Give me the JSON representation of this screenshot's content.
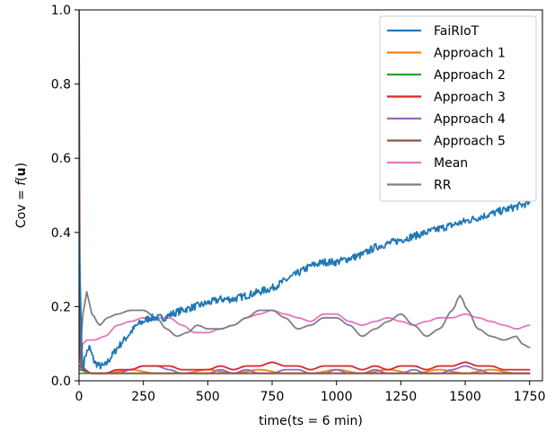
{
  "chart_data": {
    "type": "line",
    "xlabel": "time(ts = 6 min)",
    "ylabel_prefix": "Cov = ",
    "ylabel_func": "f",
    "ylabel_arg": "u",
    "xlim": [
      0,
      1800
    ],
    "ylim": [
      0.0,
      1.0
    ],
    "x_ticks": [
      0,
      250,
      500,
      750,
      1000,
      1250,
      1500,
      1750
    ],
    "x_tick_labels": [
      "0",
      "250",
      "500",
      "750",
      "1000",
      "1250",
      "1500",
      "1750"
    ],
    "y_ticks": [
      0.0,
      0.2,
      0.4,
      0.6,
      0.8,
      1.0
    ],
    "y_tick_labels": [
      "0.0",
      "0.2",
      "0.4",
      "0.6",
      "0.8",
      "1.0"
    ],
    "grid": false,
    "legend_position": "top-right",
    "series": [
      {
        "name": "FaiRIoT",
        "color": "#1f77b4",
        "noise": 0.01,
        "points": [
          [
            0,
            0.38
          ],
          [
            3,
            0.3
          ],
          [
            6,
            0.22
          ],
          [
            10,
            0.1
          ],
          [
            15,
            0.03
          ],
          [
            25,
            0.07
          ],
          [
            40,
            0.09
          ],
          [
            60,
            0.05
          ],
          [
            80,
            0.04
          ],
          [
            100,
            0.04
          ],
          [
            130,
            0.07
          ],
          [
            150,
            0.09
          ],
          [
            175,
            0.11
          ],
          [
            200,
            0.13
          ],
          [
            225,
            0.15
          ],
          [
            250,
            0.16
          ],
          [
            275,
            0.17
          ],
          [
            300,
            0.17
          ],
          [
            330,
            0.17
          ],
          [
            360,
            0.18
          ],
          [
            400,
            0.19
          ],
          [
            450,
            0.2
          ],
          [
            500,
            0.21
          ],
          [
            550,
            0.22
          ],
          [
            600,
            0.22
          ],
          [
            650,
            0.23
          ],
          [
            700,
            0.24
          ],
          [
            750,
            0.25
          ],
          [
            800,
            0.27
          ],
          [
            850,
            0.29
          ],
          [
            900,
            0.31
          ],
          [
            950,
            0.32
          ],
          [
            1000,
            0.32
          ],
          [
            1050,
            0.33
          ],
          [
            1100,
            0.34
          ],
          [
            1150,
            0.36
          ],
          [
            1200,
            0.37
          ],
          [
            1250,
            0.38
          ],
          [
            1300,
            0.39
          ],
          [
            1350,
            0.4
          ],
          [
            1400,
            0.41
          ],
          [
            1450,
            0.42
          ],
          [
            1500,
            0.43
          ],
          [
            1550,
            0.44
          ],
          [
            1600,
            0.45
          ],
          [
            1650,
            0.46
          ],
          [
            1700,
            0.47
          ],
          [
            1750,
            0.48
          ]
        ]
      },
      {
        "name": "Approach 1",
        "color": "#ff7f0e",
        "noise": 0,
        "points": [
          [
            0,
            0.03
          ],
          [
            50,
            0.02
          ],
          [
            100,
            0.02
          ],
          [
            200,
            0.03
          ],
          [
            300,
            0.02
          ],
          [
            400,
            0.02
          ],
          [
            500,
            0.03
          ],
          [
            600,
            0.02
          ],
          [
            700,
            0.03
          ],
          [
            800,
            0.02
          ],
          [
            900,
            0.02
          ],
          [
            1000,
            0.03
          ],
          [
            1100,
            0.02
          ],
          [
            1200,
            0.03
          ],
          [
            1300,
            0.02
          ],
          [
            1400,
            0.03
          ],
          [
            1500,
            0.02
          ],
          [
            1600,
            0.03
          ],
          [
            1700,
            0.02
          ],
          [
            1750,
            0.02
          ]
        ]
      },
      {
        "name": "Approach 2",
        "color": "#2ca02c",
        "noise": 0,
        "points": [
          [
            0,
            0.02
          ],
          [
            100,
            0.02
          ],
          [
            300,
            0.02
          ],
          [
            500,
            0.02
          ],
          [
            700,
            0.02
          ],
          [
            900,
            0.02
          ],
          [
            1100,
            0.02
          ],
          [
            1300,
            0.02
          ],
          [
            1500,
            0.02
          ],
          [
            1750,
            0.02
          ]
        ]
      },
      {
        "name": "Approach 3",
        "color": "#d62728",
        "noise": 0,
        "points": [
          [
            0,
            0.04
          ],
          [
            50,
            0.02
          ],
          [
            100,
            0.02
          ],
          [
            150,
            0.03
          ],
          [
            200,
            0.03
          ],
          [
            250,
            0.04
          ],
          [
            300,
            0.04
          ],
          [
            350,
            0.04
          ],
          [
            400,
            0.03
          ],
          [
            450,
            0.03
          ],
          [
            500,
            0.03
          ],
          [
            550,
            0.04
          ],
          [
            600,
            0.03
          ],
          [
            650,
            0.04
          ],
          [
            700,
            0.04
          ],
          [
            750,
            0.05
          ],
          [
            800,
            0.04
          ],
          [
            850,
            0.04
          ],
          [
            900,
            0.03
          ],
          [
            950,
            0.04
          ],
          [
            1000,
            0.04
          ],
          [
            1050,
            0.04
          ],
          [
            1100,
            0.03
          ],
          [
            1150,
            0.04
          ],
          [
            1200,
            0.03
          ],
          [
            1250,
            0.04
          ],
          [
            1300,
            0.04
          ],
          [
            1350,
            0.03
          ],
          [
            1400,
            0.04
          ],
          [
            1450,
            0.04
          ],
          [
            1500,
            0.05
          ],
          [
            1550,
            0.04
          ],
          [
            1600,
            0.04
          ],
          [
            1650,
            0.03
          ],
          [
            1700,
            0.03
          ],
          [
            1750,
            0.03
          ]
        ]
      },
      {
        "name": "Approach 4",
        "color": "#9467bd",
        "noise": 0,
        "points": [
          [
            0,
            0.03
          ],
          [
            50,
            0.02
          ],
          [
            100,
            0.02
          ],
          [
            150,
            0.02
          ],
          [
            200,
            0.03
          ],
          [
            250,
            0.04
          ],
          [
            300,
            0.04
          ],
          [
            350,
            0.03
          ],
          [
            400,
            0.02
          ],
          [
            450,
            0.02
          ],
          [
            500,
            0.02
          ],
          [
            550,
            0.03
          ],
          [
            600,
            0.02
          ],
          [
            650,
            0.03
          ],
          [
            700,
            0.02
          ],
          [
            750,
            0.02
          ],
          [
            800,
            0.03
          ],
          [
            850,
            0.03
          ],
          [
            900,
            0.02
          ],
          [
            950,
            0.02
          ],
          [
            1000,
            0.03
          ],
          [
            1050,
            0.02
          ],
          [
            1100,
            0.02
          ],
          [
            1150,
            0.03
          ],
          [
            1200,
            0.02
          ],
          [
            1250,
            0.02
          ],
          [
            1300,
            0.03
          ],
          [
            1350,
            0.02
          ],
          [
            1400,
            0.02
          ],
          [
            1450,
            0.03
          ],
          [
            1500,
            0.04
          ],
          [
            1550,
            0.03
          ],
          [
            1600,
            0.02
          ],
          [
            1650,
            0.02
          ],
          [
            1700,
            0.02
          ],
          [
            1750,
            0.02
          ]
        ]
      },
      {
        "name": "Approach 5",
        "color": "#8c564b",
        "noise": 0,
        "points": [
          [
            0,
            1.0
          ],
          [
            2,
            0.5
          ],
          [
            4,
            0.1
          ],
          [
            8,
            0.03
          ],
          [
            50,
            0.02
          ],
          [
            300,
            0.02
          ],
          [
            700,
            0.02
          ],
          [
            1100,
            0.02
          ],
          [
            1500,
            0.02
          ],
          [
            1750,
            0.02
          ]
        ]
      },
      {
        "name": "Mean",
        "color": "#e377c2",
        "noise": 0,
        "points": [
          [
            0,
            0.3
          ],
          [
            5,
            0.05
          ],
          [
            15,
            0.1
          ],
          [
            30,
            0.11
          ],
          [
            60,
            0.11
          ],
          [
            100,
            0.12
          ],
          [
            150,
            0.15
          ],
          [
            200,
            0.16
          ],
          [
            250,
            0.17
          ],
          [
            300,
            0.17
          ],
          [
            350,
            0.17
          ],
          [
            400,
            0.15
          ],
          [
            450,
            0.13
          ],
          [
            500,
            0.13
          ],
          [
            550,
            0.14
          ],
          [
            600,
            0.15
          ],
          [
            650,
            0.17
          ],
          [
            700,
            0.18
          ],
          [
            750,
            0.19
          ],
          [
            800,
            0.18
          ],
          [
            850,
            0.17
          ],
          [
            900,
            0.16
          ],
          [
            950,
            0.18
          ],
          [
            1000,
            0.18
          ],
          [
            1050,
            0.16
          ],
          [
            1100,
            0.15
          ],
          [
            1150,
            0.16
          ],
          [
            1200,
            0.17
          ],
          [
            1250,
            0.16
          ],
          [
            1300,
            0.15
          ],
          [
            1350,
            0.16
          ],
          [
            1400,
            0.17
          ],
          [
            1450,
            0.17
          ],
          [
            1500,
            0.18
          ],
          [
            1550,
            0.17
          ],
          [
            1600,
            0.16
          ],
          [
            1650,
            0.15
          ],
          [
            1700,
            0.14
          ],
          [
            1750,
            0.15
          ]
        ]
      },
      {
        "name": "RR",
        "color": "#7f7f7f",
        "noise": 0,
        "points": [
          [
            0,
            0.34
          ],
          [
            5,
            0.08
          ],
          [
            15,
            0.18
          ],
          [
            30,
            0.24
          ],
          [
            50,
            0.18
          ],
          [
            80,
            0.15
          ],
          [
            110,
            0.17
          ],
          [
            150,
            0.18
          ],
          [
            200,
            0.19
          ],
          [
            250,
            0.19
          ],
          [
            300,
            0.17
          ],
          [
            340,
            0.14
          ],
          [
            380,
            0.12
          ],
          [
            420,
            0.13
          ],
          [
            460,
            0.15
          ],
          [
            500,
            0.14
          ],
          [
            550,
            0.14
          ],
          [
            600,
            0.15
          ],
          [
            650,
            0.17
          ],
          [
            700,
            0.19
          ],
          [
            750,
            0.19
          ],
          [
            800,
            0.17
          ],
          [
            850,
            0.14
          ],
          [
            900,
            0.15
          ],
          [
            950,
            0.17
          ],
          [
            1000,
            0.17
          ],
          [
            1050,
            0.15
          ],
          [
            1100,
            0.12
          ],
          [
            1150,
            0.14
          ],
          [
            1200,
            0.16
          ],
          [
            1250,
            0.18
          ],
          [
            1300,
            0.15
          ],
          [
            1350,
            0.12
          ],
          [
            1400,
            0.14
          ],
          [
            1450,
            0.19
          ],
          [
            1480,
            0.23
          ],
          [
            1510,
            0.19
          ],
          [
            1550,
            0.14
          ],
          [
            1600,
            0.12
          ],
          [
            1650,
            0.11
          ],
          [
            1700,
            0.12
          ],
          [
            1720,
            0.1
          ],
          [
            1750,
            0.09
          ]
        ]
      }
    ]
  }
}
